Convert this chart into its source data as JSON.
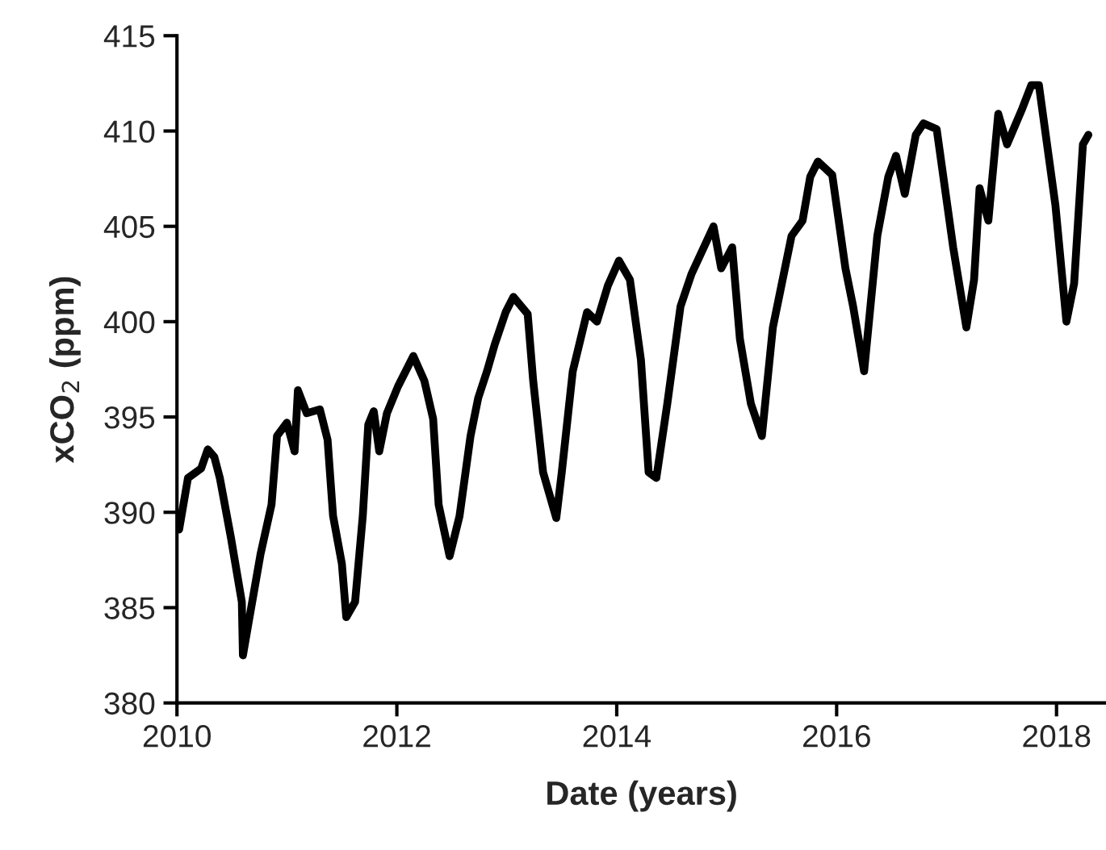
{
  "chart_data": {
    "type": "line",
    "xlabel": "Date (years)",
    "ylabel": "xCO$_{2}$ (ppm)",
    "xlim": [
      2010,
      2018.45
    ],
    "xticks": [
      2010,
      2012,
      2014,
      2016,
      2018
    ],
    "ylim": [
      380,
      415
    ],
    "yticks": [
      380,
      385,
      390,
      395,
      400,
      405,
      410,
      415
    ],
    "grid": false,
    "legend": false,
    "series": [
      {
        "color": "#000000",
        "x": [
          2010.02,
          2010.1,
          2010.22,
          2010.28,
          2010.34,
          2010.39,
          2010.49,
          2010.59,
          2010.6,
          2010.66,
          2010.76,
          2010.86,
          2010.91,
          2011.0,
          2011.07,
          2011.1,
          2011.18,
          2011.3,
          2011.37,
          2011.42,
          2011.5,
          2011.54,
          2011.62,
          2011.69,
          2011.74,
          2011.79,
          2011.84,
          2011.91,
          2012.01,
          2012.15,
          2012.25,
          2012.33,
          2012.38,
          2012.48,
          2012.57,
          2012.67,
          2012.74,
          2012.82,
          2012.89,
          2012.99,
          2013.06,
          2013.19,
          2013.24,
          2013.33,
          2013.45,
          2013.5,
          2013.6,
          2013.73,
          2013.82,
          2013.92,
          2014.02,
          2014.12,
          2014.22,
          2014.29,
          2014.36,
          2014.46,
          2014.58,
          2014.68,
          2014.88,
          2014.95,
          2015.05,
          2015.12,
          2015.22,
          2015.32,
          2015.42,
          2015.59,
          2015.69,
          2015.76,
          2015.83,
          2015.96,
          2016.08,
          2016.15,
          2016.25,
          2016.37,
          2016.47,
          2016.54,
          2016.62,
          2016.72,
          2016.79,
          2016.91,
          2017.06,
          2017.18,
          2017.25,
          2017.3,
          2017.38,
          2017.47,
          2017.55,
          2017.69,
          2017.77,
          2017.84,
          2017.99,
          2018.09,
          2018.16,
          2018.24,
          2018.29
        ],
        "values": [
          389.1,
          391.8,
          392.3,
          393.3,
          392.9,
          391.8,
          388.7,
          385.3,
          382.5,
          384.5,
          387.8,
          390.4,
          394.0,
          394.7,
          393.2,
          396.4,
          395.2,
          395.4,
          393.8,
          389.8,
          387.3,
          384.5,
          385.3,
          389.8,
          394.6,
          395.3,
          393.2,
          395.2,
          396.6,
          398.2,
          396.9,
          394.9,
          390.4,
          387.7,
          389.8,
          394.0,
          396.0,
          397.4,
          398.8,
          400.5,
          401.3,
          400.4,
          396.9,
          392.1,
          389.7,
          392.1,
          397.4,
          400.5,
          400.0,
          401.9,
          403.2,
          402.2,
          398.0,
          392.1,
          391.8,
          395.7,
          400.8,
          402.5,
          405.0,
          402.8,
          403.9,
          399.1,
          395.7,
          394.0,
          399.7,
          404.5,
          405.3,
          407.6,
          408.4,
          407.7,
          402.8,
          400.8,
          397.4,
          404.5,
          407.6,
          408.7,
          406.7,
          409.8,
          410.4,
          410.1,
          403.9,
          399.7,
          402.2,
          407.0,
          405.3,
          410.9,
          409.3,
          411.2,
          412.4,
          412.4,
          406.1,
          400.0,
          402.0,
          409.3,
          409.8
        ]
      }
    ]
  }
}
